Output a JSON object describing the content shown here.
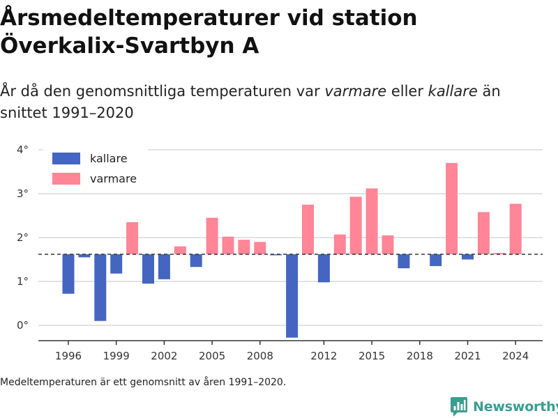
{
  "title_line1": "Årsmedeltemperaturer vid station",
  "title_line2": "Överkalix-Svartbyn A",
  "subtitle": {
    "part1": "År då den genomsnittliga temperaturen var ",
    "warmer_word": "varmare",
    "part2": " eller ",
    "colder_word": "kallare",
    "part3": " än snittet 1991–2020"
  },
  "note": "Medeltemperaturen är ett genomsnitt av åren 1991–2020.",
  "brand": {
    "name": "Newsworthy",
    "icon": "newsworthy-chart-logo-icon",
    "color": "#3a9e8f"
  },
  "chart_data": {
    "type": "bar",
    "baseline": 1.62,
    "baseline_style": "dashed",
    "colors": {
      "kallare": "#4466c1",
      "varmare": "#ff8597"
    },
    "legend": [
      {
        "name": "kallare",
        "color": "#4466c1"
      },
      {
        "name": "varmare",
        "color": "#ff8597"
      }
    ],
    "legend_position": "top-left",
    "grid": true,
    "ylim": [
      -0.3,
      4
    ],
    "yticks": [
      0,
      1,
      2,
      3,
      4
    ],
    "ytick_labels": [
      "0°",
      "1°",
      "2°",
      "3°",
      "4°"
    ],
    "xticks": [
      1996,
      1999,
      2002,
      2005,
      2008,
      2012,
      2015,
      2018,
      2021,
      2024
    ],
    "x": [
      1996,
      1997,
      1998,
      1999,
      2000,
      2001,
      2002,
      2003,
      2004,
      2005,
      2006,
      2007,
      2008,
      2009,
      2010,
      2011,
      2012,
      2013,
      2014,
      2015,
      2016,
      2017,
      2018,
      2019,
      2020,
      2021,
      2022,
      2023,
      2024
    ],
    "values": [
      0.72,
      1.55,
      0.1,
      1.18,
      2.35,
      0.95,
      1.05,
      1.8,
      1.33,
      2.45,
      2.02,
      1.95,
      1.9,
      1.6,
      -0.28,
      2.75,
      0.98,
      2.07,
      2.93,
      3.12,
      2.05,
      1.3,
      null,
      1.35,
      3.7,
      1.5,
      2.58,
      1.65,
      2.77
    ]
  }
}
